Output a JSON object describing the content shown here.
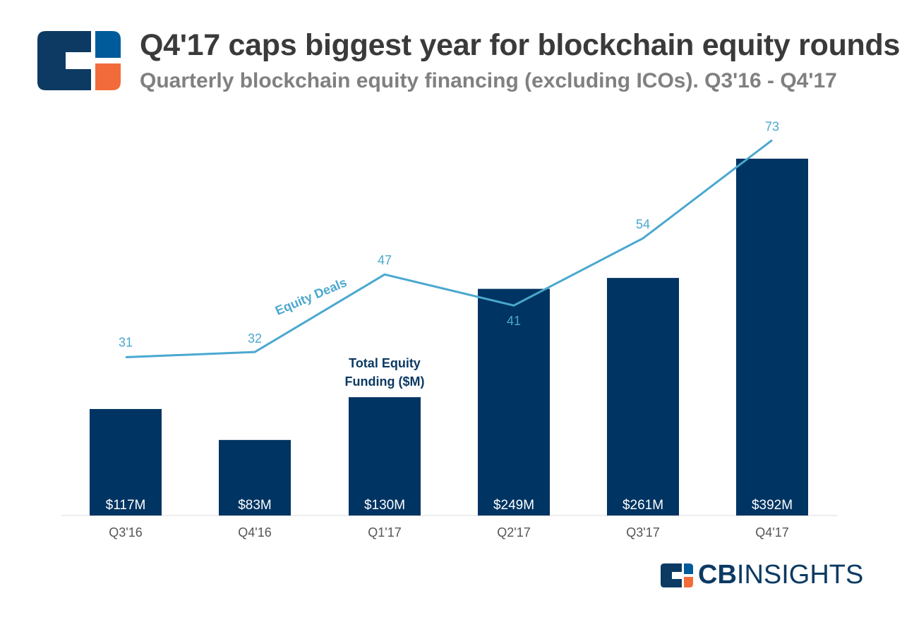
{
  "header": {
    "title": "Q4'17 caps biggest year for blockchain equity rounds",
    "subtitle": "Quarterly blockchain equity financing (excluding ICOs). Q3'16 - Q4'17"
  },
  "brand": {
    "logo_icon": "cb-insights-logo-icon",
    "name_bold": "CB",
    "name_light": "INSIGHTS",
    "colors": {
      "navy": "#0c3a63",
      "blue": "#005b9a",
      "orange": "#f26b3a"
    }
  },
  "chart_data": {
    "type": "bar",
    "categories": [
      "Q3'16",
      "Q4'16",
      "Q1'17",
      "Q2'17",
      "Q3'17",
      "Q4'17"
    ],
    "series": [
      {
        "name": "Total Equity Funding ($M)",
        "type": "bar",
        "values": [
          117,
          83,
          130,
          249,
          261,
          392
        ],
        "labels": [
          "$117M",
          "$83M",
          "$130M",
          "$249M",
          "$261M",
          "$392M"
        ],
        "color": "#003462"
      },
      {
        "name": "Equity Deals",
        "type": "line",
        "values": [
          31,
          32,
          47,
          41,
          54,
          73
        ],
        "labels": [
          "31",
          "32",
          "47",
          "41",
          "54",
          "73"
        ],
        "color": "#4aa8cf"
      }
    ],
    "series_annotations": {
      "bar": [
        "Total Equity",
        "Funding ($M)"
      ],
      "line": "Equity Deals"
    },
    "grid": false,
    "legend": "none (inline annotations)"
  }
}
